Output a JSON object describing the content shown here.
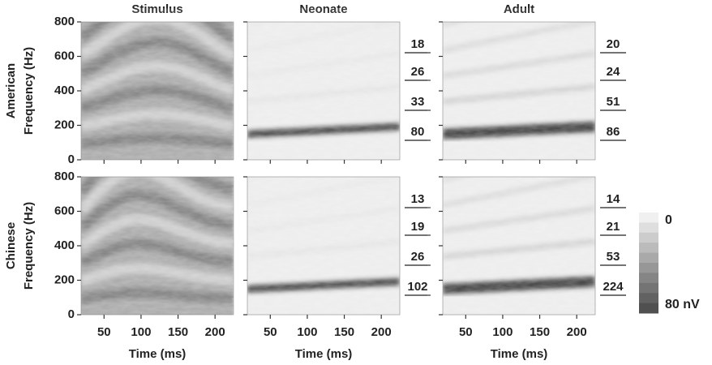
{
  "chart_data": {
    "type": "heatmap",
    "columns": [
      "Stimulus",
      "Neonate",
      "Adult"
    ],
    "rows": [
      {
        "label": "American",
        "amplitudes": [
          [
            18,
            26,
            33,
            80
          ],
          [
            20,
            24,
            51,
            86
          ]
        ]
      },
      {
        "label": "Chinese",
        "amplitudes": [
          [
            13,
            19,
            26,
            102
          ],
          [
            14,
            21,
            53,
            224
          ]
        ]
      }
    ],
    "y_label": "Frequency (Hz)",
    "x_label": "Time (ms)",
    "xlim": [
      19,
      225
    ],
    "xticks": [
      50,
      100,
      150,
      200
    ],
    "ylim": [
      0,
      800
    ],
    "yticks": [
      0,
      200,
      400,
      600,
      800
    ],
    "colorbar": {
      "lim": [
        0,
        80
      ],
      "ticks": [
        0,
        {
          "value": 80,
          "label": "80 nV"
        }
      ]
    }
  }
}
